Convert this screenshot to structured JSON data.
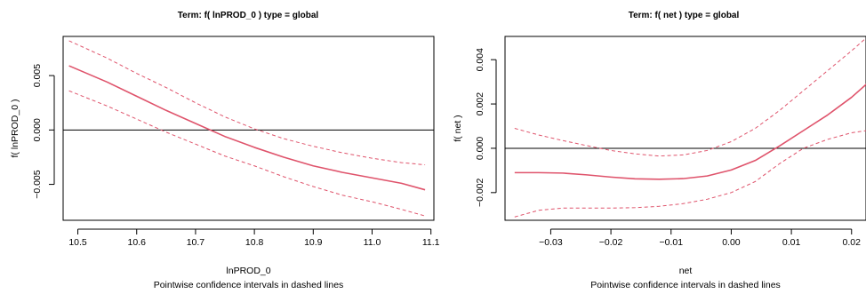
{
  "chart_data": [
    {
      "type": "line",
      "title": "Term:  f( lnPROD_0 )  type =  global",
      "xlabel": "lnPROD_0",
      "ylabel": "f( lnPROD_0 )",
      "subtitle": "Pointwise confidence intervals in dashed lines",
      "xlim": [
        10.475,
        11.105
      ],
      "ylim": [
        -0.0083,
        0.0086
      ],
      "xticks": [
        10.5,
        10.6,
        10.7,
        10.8,
        10.9,
        11.0,
        11.1
      ],
      "xtick_labels": [
        "10.5",
        "10.6",
        "10.7",
        "10.8",
        "10.9",
        "11.0",
        "11.1"
      ],
      "yticks": [
        -0.005,
        0.0,
        0.005
      ],
      "ytick_labels": [
        "−0.005",
        "0.000",
        "0.005"
      ],
      "hline": 0,
      "series": [
        {
          "style": "solid",
          "color": "#DF536B",
          "x": [
            10.485,
            10.55,
            10.6,
            10.65,
            10.7,
            10.75,
            10.8,
            10.85,
            10.9,
            10.95,
            11.0,
            11.05,
            11.09
          ],
          "y": [
            0.0059,
            0.0044,
            0.0031,
            0.0018,
            0.0006,
            -0.0006,
            -0.0016,
            -0.0025,
            -0.0033,
            -0.0039,
            -0.0044,
            -0.0049,
            -0.0055
          ]
        },
        {
          "style": "dashed",
          "color": "#DF536B",
          "x": [
            10.485,
            10.55,
            10.6,
            10.65,
            10.7,
            10.75,
            10.8,
            10.85,
            10.9,
            10.95,
            11.0,
            11.05,
            11.09
          ],
          "y": [
            0.0082,
            0.0066,
            0.0052,
            0.0039,
            0.0025,
            0.0012,
            0.0001,
            -0.0008,
            -0.0015,
            -0.0021,
            -0.0026,
            -0.003,
            -0.0032
          ]
        },
        {
          "style": "dashed",
          "color": "#DF536B",
          "x": [
            10.485,
            10.55,
            10.6,
            10.65,
            10.7,
            10.75,
            10.8,
            10.85,
            10.9,
            10.95,
            11.0,
            11.05,
            11.09
          ],
          "y": [
            0.0036,
            0.0022,
            0.001,
            -0.0002,
            -0.0013,
            -0.0024,
            -0.0033,
            -0.0043,
            -0.0052,
            -0.006,
            -0.0066,
            -0.0073,
            -0.0079
          ]
        }
      ]
    },
    {
      "type": "line",
      "title": "Term:  f( net )  type =  global",
      "xlabel": "net",
      "ylabel": "f( net )",
      "subtitle": "Pointwise confidence intervals in dashed lines",
      "xlim": [
        -0.0376,
        0.0224
      ],
      "ylim": [
        -0.00325,
        0.00505
      ],
      "xticks": [
        -0.03,
        -0.02,
        -0.01,
        0.0,
        0.01,
        0.02
      ],
      "xtick_labels": [
        "−0.03",
        "−0.02",
        "−0.01",
        "0.00",
        "0.01",
        "0.02"
      ],
      "yticks": [
        -0.002,
        0.0,
        0.002,
        0.004
      ],
      "ytick_labels": [
        "−0.002",
        "0.000",
        "0.002",
        "0.004"
      ],
      "hline": 0,
      "series": [
        {
          "style": "solid",
          "color": "#DF536B",
          "x": [
            -0.036,
            -0.032,
            -0.028,
            -0.024,
            -0.02,
            -0.016,
            -0.012,
            -0.008,
            -0.004,
            0.0,
            0.004,
            0.008,
            0.012,
            0.016,
            0.02,
            0.0225
          ],
          "y": [
            -0.0011,
            -0.0011,
            -0.00112,
            -0.0012,
            -0.0013,
            -0.00138,
            -0.0014,
            -0.00137,
            -0.00125,
            -0.00098,
            -0.00055,
            0.0001,
            0.0008,
            0.0015,
            0.0023,
            0.0029
          ]
        },
        {
          "style": "dashed",
          "color": "#DF536B",
          "x": [
            -0.036,
            -0.032,
            -0.028,
            -0.024,
            -0.02,
            -0.016,
            -0.012,
            -0.008,
            -0.004,
            0.0,
            0.004,
            0.008,
            0.012,
            0.016,
            0.02,
            0.0225
          ],
          "y": [
            0.0009,
            0.0006,
            0.00035,
            0.00012,
            -0.0001,
            -0.00025,
            -0.00035,
            -0.0003,
            -0.0001,
            0.0003,
            0.0009,
            0.0017,
            0.0026,
            0.0035,
            0.0044,
            0.005
          ]
        },
        {
          "style": "dashed",
          "color": "#DF536B",
          "x": [
            -0.036,
            -0.032,
            -0.028,
            -0.024,
            -0.02,
            -0.016,
            -0.012,
            -0.008,
            -0.004,
            0.0,
            0.004,
            0.008,
            0.012,
            0.016,
            0.02,
            0.0225
          ],
          "y": [
            -0.0031,
            -0.0028,
            -0.0027,
            -0.0027,
            -0.0027,
            -0.00268,
            -0.00262,
            -0.0025,
            -0.0023,
            -0.002,
            -0.0015,
            -0.0007,
            0.0,
            0.0004,
            0.0007,
            0.0008
          ]
        }
      ]
    }
  ]
}
